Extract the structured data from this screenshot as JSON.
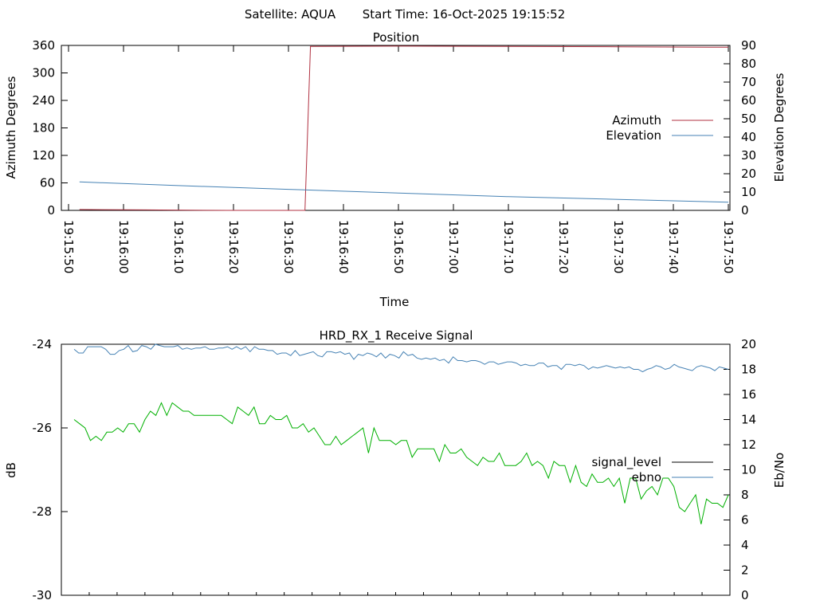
{
  "header": {
    "satellite": "Satellite: AQUA",
    "start_time": "Start Time: 16-Oct-2025 19:15:52"
  },
  "chart_data": [
    {
      "type": "line",
      "title": "Position",
      "xlabel": "Time",
      "ylabel": "Azimuth Degrees",
      "y2label": "Elevation Degrees",
      "x_range": [
        "19:15:50",
        "19:17:50"
      ],
      "ylim": [
        0,
        360
      ],
      "y2lim": [
        0,
        90
      ],
      "y_ticks": [
        0,
        60,
        120,
        180,
        240,
        300,
        360
      ],
      "y2_ticks": [
        0,
        10,
        20,
        30,
        40,
        50,
        60,
        70,
        80,
        90
      ],
      "x_ticks": [
        "19:15:50",
        "19:16:00",
        "19:16:10",
        "19:16:20",
        "19:16:30",
        "19:16:40",
        "19:16:50",
        "19:17:00",
        "19:17:10",
        "19:17:20",
        "19:17:30",
        "19:17:40",
        "19:17:50"
      ],
      "legend_position": "right",
      "series": [
        {
          "name": "Azimuth",
          "axis": "left",
          "color": "#b03040",
          "points": [
            [
              "19:15:52",
              2
            ],
            [
              "19:16:04",
              1
            ],
            [
              "19:16:19",
              0
            ],
            [
              "19:16:33",
              0
            ],
            [
              "19:16:34",
              358
            ],
            [
              "19:16:49",
              358.5
            ],
            [
              "19:17:10",
              358
            ],
            [
              "19:17:30",
              357
            ],
            [
              "19:17:50",
              356
            ]
          ]
        },
        {
          "name": "Elevation",
          "axis": "right",
          "color": "#4682b4",
          "points": [
            [
              "19:15:52",
              15.5
            ],
            [
              "19:16:10",
              13.5
            ],
            [
              "19:16:30",
              11.5
            ],
            [
              "19:16:50",
              9.5
            ],
            [
              "19:17:10",
              7.5
            ],
            [
              "19:17:30",
              6.0
            ],
            [
              "19:17:50",
              4.5
            ]
          ]
        }
      ]
    },
    {
      "type": "line",
      "title": "HRD_RX_1 Receive Signal",
      "xlabel": "",
      "ylabel": "dB",
      "y2label": "Eb/No",
      "ylim": [
        -30,
        -24
      ],
      "y2lim": [
        0,
        20
      ],
      "y_ticks": [
        -30,
        -28,
        -26,
        -24
      ],
      "y2_ticks": [
        0,
        2,
        4,
        6,
        8,
        10,
        12,
        14,
        16,
        18,
        20
      ],
      "legend_position": "right",
      "series": [
        {
          "name": "signal_level",
          "axis": "left",
          "color": "#000000",
          "legend_only": true,
          "values": []
        },
        {
          "name": "ebno",
          "axis": "right",
          "color": "#4682b4",
          "values": [
            19.6,
            19.3,
            19.3,
            19.8,
            19.8,
            19.8,
            19.8,
            19.6,
            19.2,
            19.2,
            19.5,
            19.6,
            19.9,
            19.4,
            19.5,
            19.9,
            19.8,
            19.6,
            20.0,
            19.9,
            19.8,
            19.8,
            19.8,
            19.9,
            19.6,
            19.7,
            19.6,
            19.7,
            19.7,
            19.8,
            19.6,
            19.6,
            19.7,
            19.7,
            19.8,
            19.6,
            19.8,
            19.6,
            19.8,
            19.4,
            19.8,
            19.6,
            19.6,
            19.5,
            19.5,
            19.2,
            19.3,
            19.3,
            19.1,
            19.5,
            19.1,
            19.2,
            19.3,
            19.4,
            19.1,
            19.0,
            19.4,
            19.4,
            19.3,
            19.4,
            19.2,
            19.3,
            18.8,
            19.2,
            19.1,
            19.3,
            19.2,
            19.0,
            19.3,
            18.9,
            19.2,
            19.1,
            18.9,
            19.4,
            19.1,
            19.2,
            18.9,
            18.8,
            18.9,
            18.8,
            18.9,
            18.7,
            18.8,
            18.5,
            19.0,
            18.7,
            18.7,
            18.6,
            18.7,
            18.7,
            18.6,
            18.4,
            18.6,
            18.6,
            18.4,
            18.5,
            18.6,
            18.6,
            18.5,
            18.3,
            18.4,
            18.3,
            18.3,
            18.5,
            18.5,
            18.2,
            18.3,
            18.3,
            18.0,
            18.4,
            18.4,
            18.3,
            18.4,
            18.3,
            18.0,
            18.2,
            18.1,
            18.2,
            18.3,
            18.2,
            18.1,
            18.2,
            18.1,
            18.2,
            18.0,
            18.0,
            17.8,
            18.0,
            18.1,
            18.3,
            18.2,
            18.0,
            18.1,
            18.4,
            18.2,
            18.1,
            18.0,
            17.9,
            18.2,
            18.3,
            18.2,
            18.1,
            17.9,
            18.2,
            18.1,
            18.0
          ]
        },
        {
          "name": "",
          "axis": "left",
          "color": "#00b000",
          "values": [
            -25.8,
            -25.9,
            -26.0,
            -26.3,
            -26.2,
            -26.3,
            -26.1,
            -26.1,
            -26.0,
            -26.1,
            -25.9,
            -25.9,
            -26.1,
            -25.8,
            -25.6,
            -25.7,
            -25.4,
            -25.7,
            -25.4,
            -25.5,
            -25.6,
            -25.6,
            -25.7,
            -25.7,
            -25.7,
            -25.7,
            -25.7,
            -25.7,
            -25.8,
            -25.9,
            -25.5,
            -25.6,
            -25.7,
            -25.5,
            -25.9,
            -25.9,
            -25.7,
            -25.8,
            -25.8,
            -25.7,
            -26.0,
            -26.0,
            -25.9,
            -26.1,
            -26.0,
            -26.2,
            -26.4,
            -26.4,
            -26.2,
            -26.4,
            -26.3,
            -26.2,
            -26.1,
            -26.0,
            -26.6,
            -26.0,
            -26.3,
            -26.3,
            -26.3,
            -26.4,
            -26.3,
            -26.3,
            -26.7,
            -26.5,
            -26.5,
            -26.5,
            -26.5,
            -26.8,
            -26.4,
            -26.6,
            -26.6,
            -26.5,
            -26.7,
            -26.8,
            -26.9,
            -26.7,
            -26.8,
            -26.8,
            -26.6,
            -26.9,
            -26.9,
            -26.9,
            -26.8,
            -26.6,
            -26.9,
            -26.8,
            -26.9,
            -27.2,
            -26.8,
            -26.9,
            -26.9,
            -27.3,
            -26.9,
            -27.3,
            -27.4,
            -27.1,
            -27.3,
            -27.3,
            -27.2,
            -27.4,
            -27.2,
            -27.8,
            -27.2,
            -27.2,
            -27.7,
            -27.5,
            -27.4,
            -27.6,
            -27.2,
            -27.2,
            -27.4,
            -27.9,
            -28.0,
            -27.8,
            -27.6,
            -28.3,
            -27.7,
            -27.8,
            -27.8,
            -27.9,
            -27.6
          ]
        }
      ]
    }
  ]
}
